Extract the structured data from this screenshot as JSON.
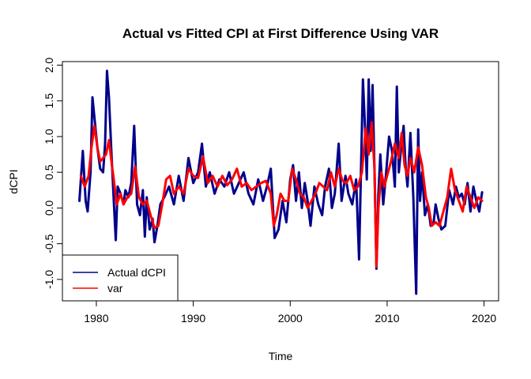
{
  "chart_data": {
    "type": "line",
    "title": "Actual vs Fitted CPI at First Difference Using VAR",
    "xlabel": "Time",
    "ylabel": "dCPI",
    "xlim": [
      1976.5,
      2021.5
    ],
    "ylim": [
      -1.3,
      2.05
    ],
    "x_ticks": [
      1980,
      1990,
      2000,
      2010,
      2020
    ],
    "y_ticks": [
      -1.0,
      -0.5,
      0.0,
      0.5,
      1.0,
      1.5,
      2.0
    ],
    "y_tick_labels": [
      "-1.0",
      "-0.5",
      "0.0",
      "0.5",
      "1.0",
      "1.5",
      "2.0"
    ],
    "grid": false,
    "legend_position": "bottom-left",
    "series": [
      {
        "name": "Actual dCPI",
        "color": "#00008B",
        "x": [
          1978.25,
          1978.6,
          1978.9,
          1979.1,
          1979.4,
          1979.6,
          1979.85,
          1980.1,
          1980.4,
          1980.7,
          1980.9,
          1981.1,
          1981.3,
          1981.55,
          1981.8,
          1982.0,
          1982.2,
          1982.5,
          1982.8,
          1983.0,
          1983.3,
          1983.6,
          1983.9,
          1984.2,
          1984.5,
          1984.8,
          1985.0,
          1985.2,
          1985.5,
          1985.8,
          1986.0,
          1986.3,
          1986.6,
          1987.0,
          1987.5,
          1988.0,
          1988.5,
          1989.0,
          1989.5,
          1990.0,
          1990.5,
          1990.9,
          1991.3,
          1991.7,
          1992.2,
          1992.7,
          1993.2,
          1993.7,
          1994.2,
          1994.7,
          1995.2,
          1995.7,
          1996.2,
          1996.7,
          1997.2,
          1997.6,
          1998.0,
          1998.4,
          1998.8,
          1999.2,
          1999.6,
          2000.0,
          2000.3,
          2000.6,
          2000.9,
          2001.2,
          2001.5,
          2001.8,
          2002.1,
          2002.5,
          2002.9,
          2003.3,
          2003.6,
          2004.0,
          2004.3,
          2004.6,
          2005.0,
          2005.3,
          2005.7,
          2006.0,
          2006.4,
          2006.8,
          2007.1,
          2007.3,
          2007.5,
          2007.7,
          2007.9,
          2008.1,
          2008.3,
          2008.5,
          2008.7,
          2008.9,
          2009.1,
          2009.3,
          2009.6,
          2009.9,
          2010.2,
          2010.5,
          2010.8,
          2011.0,
          2011.2,
          2011.45,
          2011.7,
          2011.9,
          2012.1,
          2012.4,
          2012.7,
          2013.0,
          2013.2,
          2013.4,
          2013.6,
          2013.9,
          2014.2,
          2014.5,
          2014.8,
          2015.0,
          2015.3,
          2015.6,
          2016.0,
          2016.4,
          2016.8,
          2017.1,
          2017.4,
          2017.7,
          2018.0,
          2018.3,
          2018.6,
          2018.9,
          2019.2,
          2019.5,
          2019.8
        ],
        "values": [
          0.1,
          0.8,
          0.1,
          -0.05,
          0.5,
          1.55,
          1.2,
          0.85,
          0.55,
          0.5,
          0.9,
          1.92,
          1.55,
          0.8,
          0.1,
          -0.45,
          0.3,
          0.2,
          0.05,
          0.25,
          0.15,
          0.35,
          1.15,
          0.05,
          -0.1,
          0.25,
          -0.4,
          0.15,
          -0.3,
          -0.15,
          -0.48,
          -0.25,
          0.05,
          0.15,
          0.3,
          0.05,
          0.45,
          0.1,
          0.7,
          0.35,
          0.5,
          0.9,
          0.3,
          0.5,
          0.2,
          0.4,
          0.3,
          0.5,
          0.2,
          0.35,
          0.5,
          0.2,
          0.05,
          0.4,
          0.1,
          0.3,
          0.55,
          -0.42,
          -0.3,
          0.1,
          -0.2,
          0.4,
          0.6,
          0.1,
          0.5,
          0.0,
          0.35,
          0.1,
          -0.25,
          0.3,
          0.05,
          -0.1,
          0.3,
          0.55,
          0.0,
          0.2,
          0.9,
          0.1,
          0.45,
          0.2,
          0.05,
          0.4,
          -0.72,
          0.5,
          1.8,
          1.2,
          0.4,
          1.8,
          0.8,
          1.72,
          0.5,
          -0.85,
          0.2,
          0.75,
          0.05,
          0.5,
          1.0,
          0.8,
          0.3,
          1.7,
          0.5,
          0.85,
          1.15,
          0.6,
          0.3,
          1.05,
          0.15,
          -1.2,
          1.1,
          0.1,
          0.5,
          -0.1,
          0.05,
          -0.25,
          -0.2,
          0.05,
          -0.15,
          -0.3,
          -0.25,
          0.25,
          0.05,
          0.3,
          0.15,
          0.2,
          0.05,
          0.35,
          -0.05,
          0.3,
          0.1,
          -0.05,
          0.22
        ]
      },
      {
        "name": "var",
        "color": "#FF0000",
        "x": [
          1978.4,
          1978.8,
          1979.2,
          1979.5,
          1979.8,
          1980.1,
          1980.4,
          1980.7,
          1981.0,
          1981.3,
          1981.6,
          1981.8,
          1982.1,
          1982.5,
          1982.8,
          1983.2,
          1983.6,
          1984.0,
          1984.4,
          1984.8,
          1985.2,
          1985.6,
          1986.0,
          1986.4,
          1986.8,
          1987.2,
          1987.6,
          1988.0,
          1988.5,
          1989.0,
          1989.5,
          1990.0,
          1990.5,
          1991.0,
          1991.5,
          1992.0,
          1992.5,
          1993.0,
          1993.5,
          1994.0,
          1994.5,
          1995.0,
          1995.5,
          1996.0,
          1996.5,
          1997.0,
          1997.5,
          1998.0,
          1998.3,
          1998.6,
          1999.0,
          1999.4,
          1999.8,
          2000.2,
          2000.6,
          2001.0,
          2001.4,
          2001.8,
          2002.2,
          2002.6,
          2003.0,
          2003.4,
          2003.8,
          2004.2,
          2004.6,
          2005.0,
          2005.4,
          2005.8,
          2006.2,
          2006.6,
          2007.0,
          2007.4,
          2007.8,
          2008.1,
          2008.4,
          2008.7,
          2008.9,
          2009.1,
          2009.4,
          2009.7,
          2010.0,
          2010.4,
          2010.8,
          2011.2,
          2011.5,
          2011.8,
          2012.1,
          2012.4,
          2012.8,
          2013.2,
          2013.6,
          2014.0,
          2014.3,
          2014.6,
          2015.0,
          2015.4,
          2015.8,
          2016.2,
          2016.6,
          2017.0,
          2017.4,
          2017.8,
          2018.2,
          2018.6,
          2019.0,
          2019.4,
          2019.8
        ],
        "values": [
          0.45,
          0.3,
          0.45,
          0.85,
          1.15,
          0.85,
          0.65,
          0.7,
          0.75,
          0.95,
          0.6,
          0.4,
          0.05,
          0.2,
          0.05,
          0.15,
          0.2,
          0.58,
          0.15,
          0.05,
          0.1,
          -0.1,
          -0.28,
          -0.25,
          0.05,
          0.4,
          0.45,
          0.2,
          0.3,
          0.2,
          0.55,
          0.45,
          0.42,
          0.72,
          0.35,
          0.45,
          0.3,
          0.45,
          0.32,
          0.4,
          0.55,
          0.3,
          0.35,
          0.25,
          0.3,
          0.35,
          0.38,
          0.2,
          -0.25,
          -0.1,
          0.2,
          0.1,
          0.1,
          0.55,
          0.4,
          0.2,
          0.15,
          0.0,
          0.1,
          0.2,
          0.35,
          0.3,
          0.25,
          0.5,
          0.3,
          0.55,
          0.38,
          0.35,
          0.45,
          0.25,
          0.3,
          0.5,
          1.12,
          0.75,
          1.2,
          0.55,
          -0.82,
          0.0,
          0.5,
          0.3,
          0.45,
          0.65,
          0.9,
          0.7,
          1.05,
          0.6,
          0.45,
          0.7,
          0.5,
          0.85,
          0.6,
          0.15,
          0.0,
          -0.25,
          -0.2,
          -0.25,
          -0.05,
          0.15,
          0.55,
          0.25,
          0.1,
          -0.05,
          0.3,
          0.15,
          0.0,
          0.15,
          0.1
        ]
      }
    ]
  }
}
